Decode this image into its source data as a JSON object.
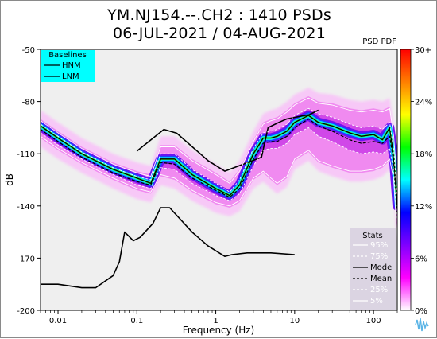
{
  "chart_data": {
    "type": "heatmap",
    "title": "YM.NJ154.--.CH2 : 1410 PSDs",
    "subtitle": "06-JUL-2021 / 04-AUG-2021",
    "xlabel": "Frequency (Hz)",
    "ylabel": "dB",
    "xscale": "log",
    "xlim": [
      0.006,
      200
    ],
    "ylim": [
      -200,
      -50
    ],
    "xticks": [
      {
        "value": 0.01,
        "label": "0.01"
      },
      {
        "value": 0.1,
        "label": "0.1"
      },
      {
        "value": 1,
        "label": "1"
      },
      {
        "value": 10,
        "label": "10"
      },
      {
        "value": 100,
        "label": "100"
      }
    ],
    "yticks": [
      {
        "value": -50,
        "label": "-50"
      },
      {
        "value": -80,
        "label": "-80"
      },
      {
        "value": -110,
        "label": "-110"
      },
      {
        "value": -140,
        "label": "-140"
      },
      {
        "value": -170,
        "label": "-170"
      },
      {
        "value": -200,
        "label": "-200"
      }
    ],
    "colorbar": {
      "label": "PSD PDF",
      "ticks": [
        "30+",
        "24%",
        "18%",
        "12%",
        "6%",
        "0%"
      ],
      "colors": [
        "#ff0000",
        "#ff7f00",
        "#ffff00",
        "#00ff00",
        "#00ffff",
        "#0000ff",
        "#8000ff",
        "#ff00ff",
        "#ffffff"
      ]
    },
    "baselines_legend": {
      "title": "Baselines",
      "items": [
        "HNM",
        "LNM"
      ],
      "background": "#00ffff",
      "placement": "top-left"
    },
    "stats_legend": {
      "title": "Stats",
      "items": [
        {
          "label": "95%",
          "style": "white-solid"
        },
        {
          "label": "75%",
          "style": "white-dashed"
        },
        {
          "label": "Mode",
          "style": "black-solid"
        },
        {
          "label": "Mean",
          "style": "black-dashed"
        },
        {
          "label": "25%",
          "style": "white-dashed"
        },
        {
          "label": "5%",
          "style": "white-solid"
        }
      ],
      "placement": "bottom-right"
    },
    "series": [
      {
        "name": "HNM",
        "x": [
          0.1,
          0.22,
          0.32,
          0.8,
          1.3,
          3.8,
          4.6,
          6.3,
          7.9,
          15.4,
          20
        ],
        "y": [
          -108.5,
          -96,
          -98.2,
          -114,
          -120,
          -112,
          -95,
          -92,
          -90,
          -87.5,
          -85
        ]
      },
      {
        "name": "LNM",
        "x": [
          0.006,
          0.01,
          0.02,
          0.03,
          0.05,
          0.06,
          0.07,
          0.09,
          0.11,
          0.16,
          0.2,
          0.26,
          0.5,
          0.8,
          1.3,
          1.6,
          2.5,
          3.8,
          5,
          10
        ],
        "y": [
          -185,
          -185,
          -187,
          -187,
          -180,
          -172,
          -155,
          -160,
          -158,
          -150,
          -141,
          -141,
          -155,
          -163,
          -169,
          -168,
          -167,
          -167,
          -167,
          -168
        ]
      },
      {
        "name": "Mode",
        "x": [
          0.006,
          0.01,
          0.02,
          0.05,
          0.1,
          0.15,
          0.2,
          0.3,
          0.5,
          1,
          1.5,
          2,
          3,
          4,
          5,
          6,
          8,
          10,
          15,
          20,
          30,
          50,
          70,
          100,
          130,
          160,
          180,
          200
        ],
        "y": [
          -94,
          -101,
          -110,
          -119,
          -124,
          -127,
          -113,
          -113,
          -122,
          -130,
          -134,
          -128,
          -110,
          -101,
          -101,
          -100,
          -97,
          -92,
          -88,
          -92,
          -94,
          -98,
          -100,
          -99,
          -102,
          -95,
          -112,
          -140
        ]
      },
      {
        "name": "Mean",
        "x": [
          0.006,
          0.01,
          0.02,
          0.05,
          0.1,
          0.15,
          0.2,
          0.3,
          0.5,
          1,
          1.5,
          2,
          3,
          4,
          5,
          6,
          8,
          10,
          15,
          20,
          30,
          50,
          70,
          100,
          130,
          160,
          180,
          200
        ],
        "y": [
          -96,
          -103,
          -112,
          -121,
          -126,
          -128,
          -115,
          -116,
          -124,
          -131,
          -135,
          -130,
          -113,
          -104,
          -103,
          -103,
          -100,
          -95,
          -90,
          -94,
          -97,
          -102,
          -104,
          -103,
          -104,
          -100,
          -115,
          -145
        ]
      },
      {
        "name": "75%",
        "x": [
          0.006,
          0.01,
          0.02,
          0.05,
          0.1,
          0.15,
          0.2,
          0.3,
          0.5,
          1,
          1.5,
          2,
          3,
          4,
          5,
          6,
          8,
          10,
          15,
          20,
          30,
          50,
          70,
          100,
          130,
          160,
          180,
          200
        ],
        "y": [
          -93,
          -100,
          -109,
          -118,
          -123,
          -125,
          -110,
          -110,
          -119,
          -127,
          -132,
          -125,
          -107,
          -98,
          -97,
          -96,
          -93,
          -88,
          -84,
          -87,
          -89,
          -93,
          -95,
          -94,
          -96,
          -92,
          -108,
          -135
        ]
      },
      {
        "name": "25%",
        "x": [
          0.006,
          0.01,
          0.02,
          0.05,
          0.1,
          0.15,
          0.2,
          0.3,
          0.5,
          1,
          1.5,
          2,
          3,
          4,
          5,
          6,
          8,
          10,
          15,
          20,
          30,
          50,
          70,
          100,
          130,
          160,
          180,
          200
        ],
        "y": [
          -98,
          -105,
          -113,
          -122,
          -128,
          -130,
          -118,
          -119,
          -127,
          -134,
          -137,
          -133,
          -117,
          -108,
          -107,
          -107,
          -104,
          -99,
          -95,
          -100,
          -103,
          -108,
          -110,
          -109,
          -110,
          -107,
          -120,
          -150
        ]
      },
      {
        "name": "95%",
        "x": [
          0.006,
          0.01,
          0.02,
          0.05,
          0.1,
          0.15,
          0.2,
          0.3,
          0.5,
          1,
          1.5,
          2,
          3,
          4,
          5,
          6,
          8,
          10,
          15,
          20,
          30,
          50,
          70,
          100,
          130,
          160,
          180,
          200
        ],
        "y": [
          -91,
          -98,
          -107,
          -116,
          -121,
          -123,
          -106,
          -106,
          -114,
          -122,
          -127,
          -120,
          -103,
          -93,
          -91,
          -90,
          -86,
          -82,
          -78,
          -81,
          -82,
          -85,
          -86,
          -85,
          -86,
          -84,
          -100,
          -128
        ]
      },
      {
        "name": "5%",
        "x": [
          0.006,
          0.01,
          0.02,
          0.05,
          0.1,
          0.15,
          0.2,
          0.3,
          0.5,
          1,
          1.5,
          2,
          3,
          4,
          5,
          6,
          8,
          10,
          15,
          20,
          30,
          50,
          70,
          100,
          130,
          160,
          180,
          200
        ],
        "y": [
          -100,
          -107,
          -115,
          -124,
          -130,
          -132,
          -122,
          -124,
          -131,
          -138,
          -140,
          -137,
          -124,
          -120,
          -124,
          -127,
          -123,
          -113,
          -108,
          -114,
          -117,
          -120,
          -120,
          -119,
          -117,
          -113,
          -125,
          -160
        ]
      }
    ],
    "grid": false
  }
}
